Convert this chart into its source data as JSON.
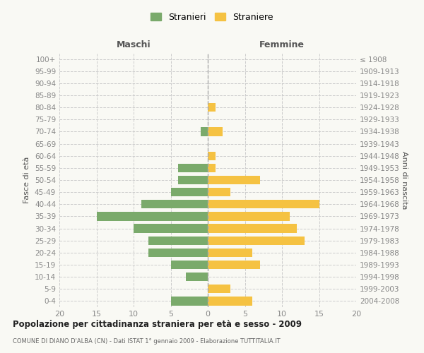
{
  "age_groups": [
    "100+",
    "95-99",
    "90-94",
    "85-89",
    "80-84",
    "75-79",
    "70-74",
    "65-69",
    "60-64",
    "55-59",
    "50-54",
    "45-49",
    "40-44",
    "35-39",
    "30-34",
    "25-29",
    "20-24",
    "15-19",
    "10-14",
    "5-9",
    "0-4"
  ],
  "birth_years": [
    "≤ 1908",
    "1909-1913",
    "1914-1918",
    "1919-1923",
    "1924-1928",
    "1929-1933",
    "1934-1938",
    "1939-1943",
    "1944-1948",
    "1949-1953",
    "1954-1958",
    "1959-1963",
    "1964-1968",
    "1969-1973",
    "1974-1978",
    "1979-1983",
    "1984-1988",
    "1989-1993",
    "1994-1998",
    "1999-2003",
    "2004-2008"
  ],
  "males": [
    0,
    0,
    0,
    0,
    0,
    0,
    1,
    0,
    0,
    4,
    4,
    5,
    9,
    15,
    10,
    8,
    8,
    5,
    3,
    0,
    5
  ],
  "females": [
    0,
    0,
    0,
    0,
    1,
    0,
    2,
    0,
    1,
    1,
    7,
    3,
    15,
    11,
    12,
    13,
    6,
    7,
    0,
    3,
    6
  ],
  "male_color": "#7aaa6b",
  "female_color": "#f5c242",
  "background_color": "#f9f9f4",
  "grid_color": "#cccccc",
  "title": "Popolazione per cittadinanza straniera per età e sesso - 2009",
  "subtitle": "COMUNE DI DIANO D'ALBA (CN) - Dati ISTAT 1° gennaio 2009 - Elaborazione TUTTITALIA.IT",
  "header_left": "Maschi",
  "header_right": "Femmine",
  "ylabel_left": "Fasce di età",
  "ylabel_right": "Anni di nascita",
  "legend_males": "Stranieri",
  "legend_females": "Straniere",
  "xlim": 20,
  "bar_height": 0.72
}
